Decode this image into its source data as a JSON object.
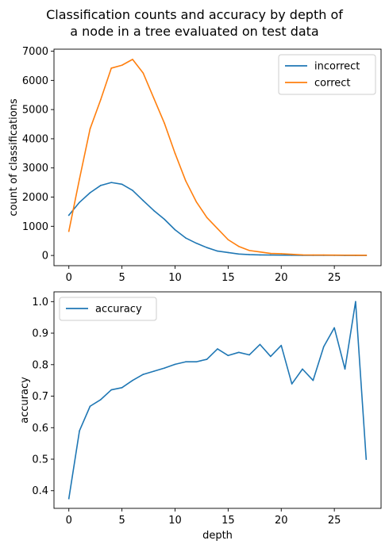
{
  "figure": {
    "title_line1": "Classification counts and accuracy by depth of",
    "title_line2": "a node in a tree evaluated on test data"
  },
  "chart_data": [
    {
      "type": "line",
      "ylabel": "count of classifications",
      "xlabel": "",
      "xlim": [
        -1.4,
        29.4
      ],
      "ylim": [
        -350,
        7070
      ],
      "xticks": [
        0,
        5,
        10,
        15,
        20,
        25
      ],
      "yticks": [
        0,
        1000,
        2000,
        3000,
        4000,
        5000,
        6000,
        7000
      ],
      "grid": false,
      "legend_position": "upper right",
      "x": [
        0,
        1,
        2,
        3,
        4,
        5,
        6,
        7,
        8,
        9,
        10,
        11,
        12,
        13,
        14,
        15,
        16,
        17,
        18,
        19,
        20,
        21,
        22,
        23,
        24,
        25,
        26,
        27,
        28
      ],
      "series": [
        {
          "name": "incorrect",
          "color": "#1f77b4",
          "values": [
            1380,
            1820,
            2150,
            2400,
            2500,
            2440,
            2230,
            1880,
            1540,
            1240,
            880,
            600,
            420,
            270,
            150,
            100,
            50,
            30,
            20,
            15,
            10,
            8,
            5,
            5,
            4,
            3,
            2,
            1,
            1
          ]
        },
        {
          "name": "correct",
          "color": "#ff7f0e",
          "values": [
            830,
            2620,
            4340,
            5340,
            6420,
            6520,
            6720,
            6250,
            5390,
            4530,
            3500,
            2560,
            1840,
            1300,
            920,
            540,
            310,
            170,
            120,
            70,
            60,
            40,
            20,
            15,
            15,
            12,
            10,
            8,
            5
          ]
        }
      ]
    },
    {
      "type": "line",
      "ylabel": "accuracy",
      "xlabel": "depth",
      "xlim": [
        -1.4,
        29.4
      ],
      "ylim": [
        0.344,
        1.031
      ],
      "xticks": [
        0,
        5,
        10,
        15,
        20,
        25
      ],
      "yticks": [
        0.4,
        0.5,
        0.6,
        0.7,
        0.8,
        0.9,
        1.0
      ],
      "ytick_labels": [
        "0.4",
        "0.5",
        "0.6",
        "0.7",
        "0.8",
        "0.9",
        "1.0"
      ],
      "grid": false,
      "legend_position": "upper left",
      "x": [
        0,
        1,
        2,
        3,
        4,
        5,
        6,
        7,
        8,
        9,
        10,
        11,
        12,
        13,
        14,
        15,
        16,
        17,
        18,
        19,
        20,
        21,
        22,
        23,
        24,
        25,
        26,
        27,
        28
      ],
      "series": [
        {
          "name": "accuracy",
          "color": "#1f77b4",
          "values": [
            0.375,
            0.59,
            0.668,
            0.689,
            0.72,
            0.727,
            0.75,
            0.769,
            0.779,
            0.789,
            0.801,
            0.809,
            0.809,
            0.817,
            0.85,
            0.829,
            0.839,
            0.831,
            0.864,
            0.826,
            0.861,
            0.739,
            0.786,
            0.75,
            0.857,
            0.917,
            0.786,
            1.0,
            0.5
          ]
        }
      ]
    }
  ]
}
